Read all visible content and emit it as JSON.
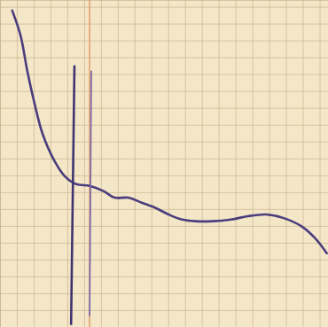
{
  "chart_data": {
    "type": "line",
    "grid": true,
    "tick_labels": false,
    "xlim": [
      0,
      19.5
    ],
    "ylim": [
      0,
      19.4
    ],
    "xticks": [
      0,
      1,
      2,
      3,
      4,
      5,
      6,
      7,
      8,
      9,
      10,
      11,
      12,
      13,
      14,
      15,
      16,
      17,
      18,
      19
    ],
    "yticks": [
      0,
      1,
      2,
      3,
      4,
      5,
      6,
      7,
      8,
      9,
      10,
      11,
      12,
      13,
      14,
      15,
      16,
      17,
      18,
      19
    ],
    "series": [
      {
        "color": "#e39a6a",
        "x": [
          5.3,
          5.3
        ],
        "values": [
          0,
          19.4
        ]
      },
      {
        "color": "#4b3d7e",
        "x": [
          0.7,
          1.2,
          1.6,
          2.0,
          2.5,
          3.2,
          3.8,
          4.5,
          5.3,
          6.1,
          6.8,
          7.6,
          8.4,
          9.2,
          10.0,
          10.8,
          11.6,
          12.6,
          13.7,
          14.7,
          15.8,
          16.8,
          17.9,
          18.7,
          19.4
        ],
        "values": [
          18.8,
          17.3,
          15.2,
          13.4,
          11.5,
          9.9,
          9.0,
          8.5,
          8.4,
          8.1,
          7.7,
          7.7,
          7.4,
          7.1,
          6.7,
          6.4,
          6.3,
          6.3,
          6.4,
          6.6,
          6.7,
          6.5,
          6.0,
          5.3,
          4.4
        ]
      },
      {
        "color": "#3f3470",
        "x": [
          4.4,
          4.2
        ],
        "values": [
          15.5,
          0.2
        ]
      },
      {
        "color": "#7d6aa8",
        "x": [
          5.4,
          5.3
        ],
        "values": [
          15.2,
          0.7
        ]
      }
    ]
  }
}
